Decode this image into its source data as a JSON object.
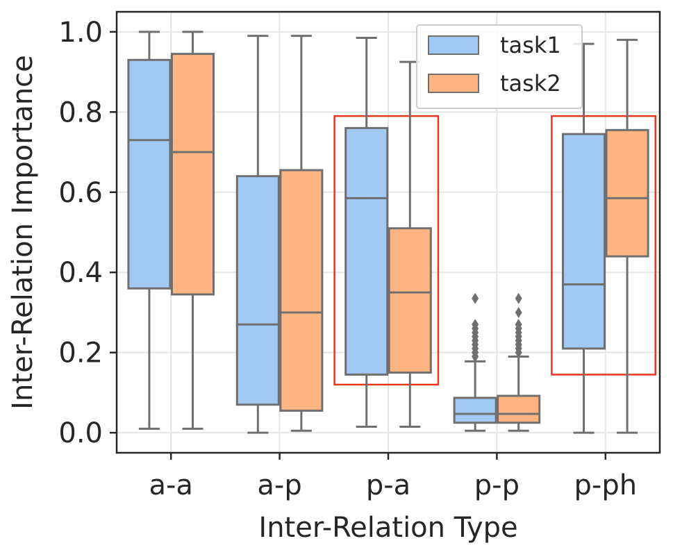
{
  "chart_data": {
    "type": "boxplot",
    "xlabel": "Inter-Relation Type",
    "ylabel": "Inter-Relation Importance",
    "categories": [
      "a-a",
      "a-p",
      "p-a",
      "p-p",
      "p-ph"
    ],
    "ylim": [
      -0.05,
      1.05
    ],
    "yticks": [
      0.0,
      0.2,
      0.4,
      0.6,
      0.8,
      1.0
    ],
    "ytick_labels": [
      "0.0",
      "0.2",
      "0.4",
      "0.6",
      "0.8",
      "1.0"
    ],
    "grid": true,
    "legend": {
      "position": "top-right"
    },
    "series": [
      {
        "name": "task1",
        "color": "#a1c9f4",
        "boxes": [
          {
            "whislo": 0.01,
            "q1": 0.36,
            "med": 0.73,
            "q3": 0.93,
            "whishi": 1.0,
            "fliers": []
          },
          {
            "whislo": 0.0,
            "q1": 0.07,
            "med": 0.27,
            "q3": 0.64,
            "whishi": 0.99,
            "fliers": []
          },
          {
            "whislo": 0.015,
            "q1": 0.145,
            "med": 0.585,
            "q3": 0.76,
            "whishi": 0.985,
            "fliers": []
          },
          {
            "whislo": 0.005,
            "q1": 0.025,
            "med": 0.047,
            "q3": 0.087,
            "whishi": 0.178,
            "fliers": [
              0.19,
              0.2,
              0.21,
              0.22,
              0.23,
              0.24,
              0.25,
              0.26,
              0.27,
              0.335
            ]
          },
          {
            "whislo": 0.0,
            "q1": 0.21,
            "med": 0.37,
            "q3": 0.745,
            "whishi": 0.97,
            "fliers": []
          }
        ]
      },
      {
        "name": "task2",
        "color": "#ffb482",
        "boxes": [
          {
            "whislo": 0.01,
            "q1": 0.345,
            "med": 0.7,
            "q3": 0.945,
            "whishi": 1.0,
            "fliers": []
          },
          {
            "whislo": 0.005,
            "q1": 0.055,
            "med": 0.3,
            "q3": 0.655,
            "whishi": 0.99,
            "fliers": []
          },
          {
            "whislo": 0.015,
            "q1": 0.15,
            "med": 0.35,
            "q3": 0.51,
            "whishi": 0.925,
            "fliers": []
          },
          {
            "whislo": 0.005,
            "q1": 0.025,
            "med": 0.047,
            "q3": 0.092,
            "whishi": 0.19,
            "fliers": [
              0.2,
              0.21,
              0.22,
              0.23,
              0.24,
              0.25,
              0.26,
              0.27,
              0.3,
              0.335
            ]
          },
          {
            "whislo": 0.0,
            "q1": 0.44,
            "med": 0.585,
            "q3": 0.755,
            "whishi": 0.98,
            "fliers": []
          }
        ]
      }
    ],
    "annotations": [
      {
        "type": "highlight-box",
        "category": "p-a",
        "y_range": [
          0.12,
          0.79
        ],
        "color": "#e8361e"
      },
      {
        "type": "highlight-box",
        "category": "p-ph",
        "y_range": [
          0.145,
          0.79
        ],
        "color": "#e8361e"
      }
    ],
    "style": {
      "box_edge_color": "#6f6f6f",
      "grid_color": "#e5e5e5",
      "axis_color": "#262626"
    }
  }
}
